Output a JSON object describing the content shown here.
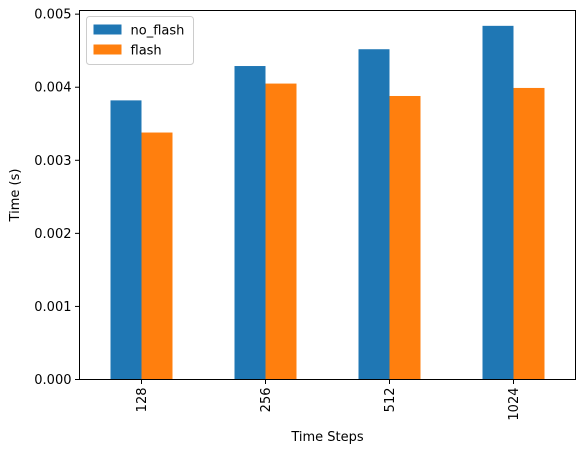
{
  "chart_data": {
    "type": "bar",
    "categories": [
      "128",
      "256",
      "512",
      "1024"
    ],
    "series": [
      {
        "name": "no_flash",
        "color": "#1f77b4",
        "values": [
          0.00382,
          0.00429,
          0.00452,
          0.00484
        ]
      },
      {
        "name": "flash",
        "color": "#ff7f0e",
        "values": [
          0.00338,
          0.00405,
          0.00388,
          0.00399
        ]
      }
    ],
    "xlabel": "Time Steps",
    "ylabel": "Time (s)",
    "ylim": [
      0,
      0.00505
    ],
    "yticks": [
      0.0,
      0.001,
      0.002,
      0.003,
      0.004,
      0.005
    ],
    "ytick_labels": [
      "0.000",
      "0.001",
      "0.002",
      "0.003",
      "0.004",
      "0.005"
    ],
    "grid": false,
    "legend_position": "top-left"
  }
}
